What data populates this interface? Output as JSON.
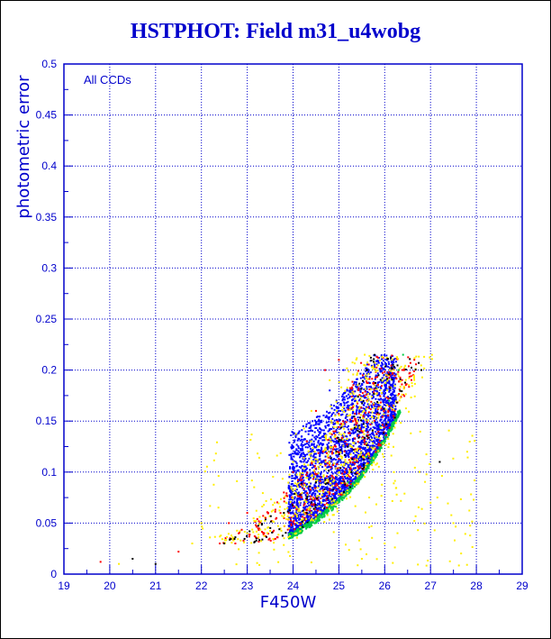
{
  "chart_data": {
    "type": "scatter",
    "title": "HSTPHOT: Field m31_u4wobg",
    "xlabel": "F450W",
    "ylabel": "photometric error",
    "annotation": "All CCDs",
    "xlim": [
      19,
      29
    ],
    "ylim": [
      0,
      0.5
    ],
    "x_ticks": [
      "19",
      "20",
      "21",
      "22",
      "23",
      "24",
      "25",
      "26",
      "27",
      "28",
      "29"
    ],
    "y_ticks": [
      "0",
      "0.05",
      "0.1",
      "0.15",
      "0.2",
      "0.25",
      "0.3",
      "0.35",
      "0.4",
      "0.45",
      "0.5"
    ],
    "grid": true,
    "error_cap": 0.215,
    "colors": {
      "title": "#0000cc",
      "axes": "#0000cc",
      "grid": "#0000cc",
      "series": [
        "#0000ff",
        "#00cc44",
        "#ff0000",
        "#ffee00",
        "#000000"
      ]
    },
    "series": [
      {
        "color": "#0000ff",
        "points": [
          [
            24.0,
            0.042
          ],
          [
            24.3,
            0.052
          ],
          [
            24.6,
            0.065
          ],
          [
            24.9,
            0.085
          ],
          [
            25.2,
            0.105
          ],
          [
            25.5,
            0.13
          ],
          [
            25.8,
            0.16
          ],
          [
            26.0,
            0.185
          ],
          [
            26.2,
            0.21
          ],
          [
            25.1,
            0.2
          ],
          [
            24.8,
            0.18
          ],
          [
            24.6,
            0.15
          ],
          [
            24.4,
            0.12
          ],
          [
            24.2,
            0.09
          ],
          [
            24.0,
            0.07
          ]
        ]
      },
      {
        "color": "#00cc44",
        "points": [
          [
            24.0,
            0.04
          ],
          [
            24.4,
            0.05
          ],
          [
            24.8,
            0.068
          ],
          [
            25.2,
            0.09
          ],
          [
            25.6,
            0.115
          ],
          [
            25.9,
            0.145
          ],
          [
            26.1,
            0.17
          ],
          [
            26.3,
            0.2
          ],
          [
            26.4,
            0.215
          ]
        ]
      },
      {
        "color": "#ff0000",
        "points": [
          [
            22.6,
            0.05
          ],
          [
            23.0,
            0.06
          ],
          [
            23.4,
            0.055
          ],
          [
            23.8,
            0.08
          ],
          [
            24.0,
            0.1
          ],
          [
            24.3,
            0.13
          ],
          [
            24.5,
            0.16
          ],
          [
            24.7,
            0.2
          ],
          [
            25.0,
            0.21
          ],
          [
            19.8,
            0.012
          ],
          [
            21.5,
            0.022
          ],
          [
            22.4,
            0.03
          ]
        ]
      },
      {
        "color": "#ffee00",
        "points": [
          [
            23.0,
            0.04
          ],
          [
            23.6,
            0.07
          ],
          [
            24.0,
            0.11
          ],
          [
            24.4,
            0.16
          ],
          [
            24.8,
            0.19
          ],
          [
            25.4,
            0.15
          ],
          [
            26.2,
            0.1
          ],
          [
            27.0,
            0.07
          ],
          [
            27.5,
            0.05
          ],
          [
            26.0,
            0.03
          ],
          [
            25.5,
            0.015
          ],
          [
            20.2,
            0.01
          ],
          [
            21.8,
            0.03
          ],
          [
            22.0,
            0.05
          ],
          [
            27.8,
            0.12
          ]
        ]
      },
      {
        "color": "#000000",
        "points": [
          [
            20.5,
            0.015
          ],
          [
            21.0,
            0.01
          ],
          [
            22.5,
            0.03
          ],
          [
            23.2,
            0.035
          ],
          [
            23.8,
            0.06
          ],
          [
            24.5,
            0.09
          ],
          [
            25.0,
            0.13
          ],
          [
            25.6,
            0.2
          ],
          [
            26.8,
            0.2
          ],
          [
            27.2,
            0.11
          ]
        ]
      }
    ]
  }
}
